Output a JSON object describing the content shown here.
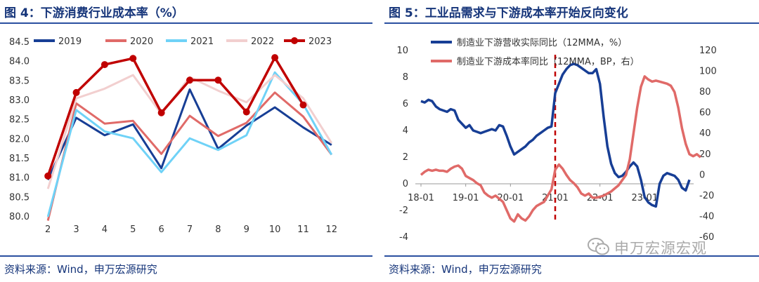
{
  "left": {
    "title": "图 4：下游消费行业成本率（%）",
    "source": "资料来源：Wind，申万宏源研究"
  },
  "right": {
    "title": "图 5：工业品需求与下游成本率开始反向变化",
    "source": "资料来源：Wind，申万宏源研究"
  },
  "watermark": "申万宏源宏观",
  "colors": {
    "title": "#16357a",
    "c2019": "#173e95",
    "c2020": "#e06a68",
    "c2021": "#6fd2f7",
    "c2022": "#f2cfcf",
    "c2023": "#c00000"
  },
  "chart_data": [
    {
      "type": "line",
      "title": "下游消费行业成本率（%）",
      "categories": [
        "2",
        "3",
        "4",
        "5",
        "6",
        "7",
        "8",
        "9",
        "10",
        "11",
        "12"
      ],
      "ylim": [
        80.0,
        84.5
      ],
      "yticks": [
        "80.0",
        "80.5",
        "81.0",
        "81.5",
        "82.0",
        "82.5",
        "83.0",
        "83.5",
        "84.0",
        "84.5"
      ],
      "legend_position": "top",
      "series": [
        {
          "name": "2019",
          "color": "#173e95",
          "width": 3,
          "marker": false,
          "values": [
            80.95,
            82.55,
            82.1,
            82.38,
            81.25,
            83.28,
            81.75,
            82.35,
            82.82,
            82.3,
            81.85
          ]
        },
        {
          "name": "2020",
          "color": "#e06a68",
          "width": 3,
          "marker": false,
          "values": [
            79.9,
            82.92,
            82.4,
            82.47,
            81.62,
            82.6,
            82.08,
            82.42,
            83.2,
            82.58,
            81.6
          ]
        },
        {
          "name": "2021",
          "color": "#6fd2f7",
          "width": 3,
          "marker": false,
          "values": [
            80.0,
            82.75,
            82.2,
            82.02,
            81.15,
            82.02,
            81.72,
            82.1,
            83.72,
            82.9,
            81.6
          ]
        },
        {
          "name": "2022",
          "color": "#f2cfcf",
          "width": 3,
          "marker": false,
          "values": [
            80.72,
            83.05,
            83.3,
            83.65,
            82.65,
            83.6,
            83.25,
            82.95,
            83.65,
            83.05,
            81.9
          ]
        },
        {
          "name": "2023",
          "color": "#c00000",
          "width": 3.5,
          "marker": true,
          "values": [
            81.05,
            83.2,
            83.92,
            84.08,
            82.68,
            83.52,
            83.52,
            82.7,
            84.1,
            82.88,
            null
          ]
        }
      ]
    },
    {
      "type": "line",
      "title": "工业品需求与下游成本率开始反向变化",
      "x_ticks": [
        "18-01",
        "19-01",
        "20-01",
        "21-01",
        "22-01",
        "23-01"
      ],
      "x_start": "2018-01",
      "y_left": {
        "ylim": [
          -4,
          10
        ],
        "ticks": [
          "-4",
          "-2",
          "0",
          "2",
          "4",
          "6",
          "8",
          "10"
        ]
      },
      "y_right": {
        "ylim": [
          -60,
          120
        ],
        "ticks": [
          "-60",
          "-40",
          "-20",
          "0",
          "20",
          "40",
          "60",
          "80",
          "100",
          "120"
        ]
      },
      "vline_at": "2021-01",
      "legend_position": "top-right",
      "series": [
        {
          "name": "制造业下游营收实际同比（12MMA，%）",
          "axis": "left",
          "color": "#173e95",
          "values": [
            6.2,
            6.1,
            6.3,
            6.2,
            5.8,
            5.6,
            5.5,
            5.4,
            5.6,
            5.5,
            4.8,
            4.5,
            4.2,
            4.4,
            4.0,
            3.9,
            3.8,
            3.9,
            4.0,
            4.1,
            4.0,
            4.4,
            4.3,
            3.6,
            2.8,
            2.2,
            2.4,
            2.6,
            2.8,
            3.1,
            3.3,
            3.6,
            3.8,
            4.0,
            4.2,
            4.3,
            6.8,
            7.5,
            8.2,
            8.6,
            8.9,
            9.0,
            8.9,
            8.7,
            8.5,
            8.3,
            8.3,
            8.6,
            7.5,
            5.0,
            2.8,
            1.5,
            0.8,
            0.5,
            0.6,
            0.9,
            1.3,
            1.6,
            1.3,
            0.3,
            -1.0,
            -1.4,
            -1.6,
            -1.7,
            0.0,
            0.6,
            0.8,
            0.7,
            0.6,
            0.3,
            -0.3,
            -0.5,
            0.3
          ]
        },
        {
          "name": "制造业下游成本率同比（12MMA，BP，右）",
          "axis": "right",
          "color": "#e06a68",
          "values": [
            0,
            3,
            5,
            4,
            5,
            4,
            4,
            3,
            6,
            8,
            9,
            6,
            -1,
            -3,
            -5,
            -8,
            -10,
            -17,
            -20,
            -22,
            -20,
            -23,
            -26,
            -34,
            -42,
            -45,
            -38,
            -42,
            -44,
            -40,
            -34,
            -30,
            -28,
            -26,
            -20,
            -14,
            5,
            10,
            6,
            0,
            -5,
            -8,
            -12,
            -18,
            -20,
            -18,
            -22,
            -22,
            -21,
            -20,
            -18,
            -16,
            -13,
            -10,
            -5,
            0,
            15,
            40,
            65,
            85,
            95,
            92,
            90,
            91,
            90,
            89,
            88,
            86,
            80,
            65,
            45,
            30,
            20,
            18,
            20,
            17
          ]
        }
      ]
    }
  ]
}
